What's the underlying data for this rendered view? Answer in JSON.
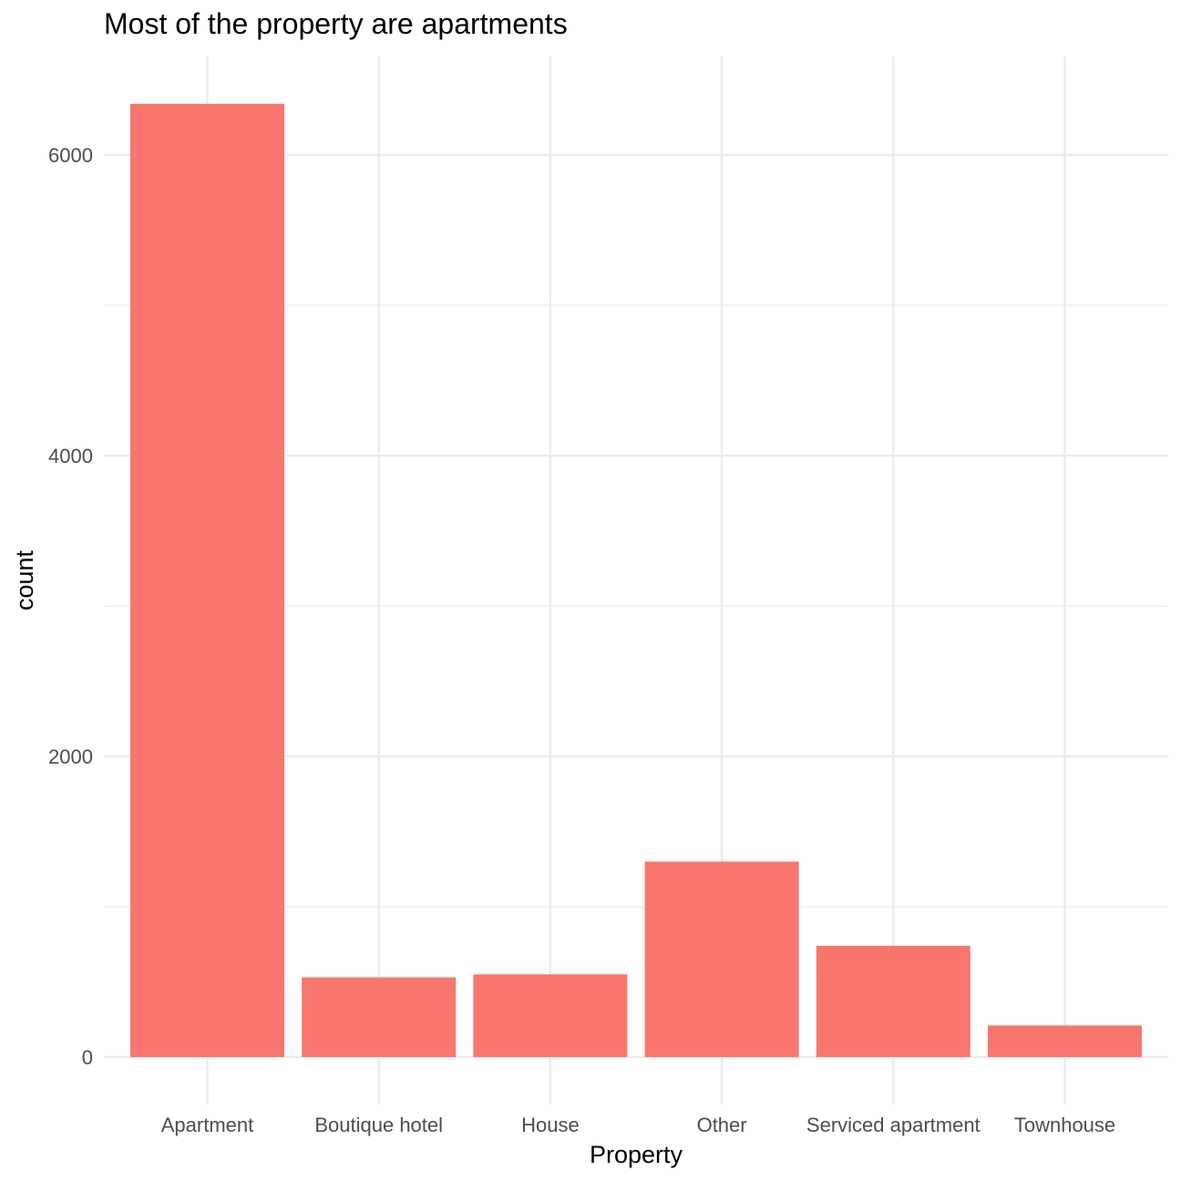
{
  "chart_data": {
    "type": "bar",
    "title": "Most of the property are apartments",
    "xlabel": "Property",
    "ylabel": "count",
    "categories": [
      "Apartment",
      "Boutique hotel",
      "House",
      "Other",
      "Serviced apartment",
      "Townhouse"
    ],
    "values": [
      6340,
      530,
      550,
      1300,
      740,
      210
    ],
    "ylim": [
      0,
      6650
    ],
    "yticks": [
      0,
      2000,
      4000,
      6000
    ],
    "ytick_labels": [
      "0",
      "2000",
      "4000",
      "6000"
    ],
    "grid": true,
    "legend": "none",
    "bar_color": "#F8766D",
    "grid_color": "#EBEBEB"
  }
}
